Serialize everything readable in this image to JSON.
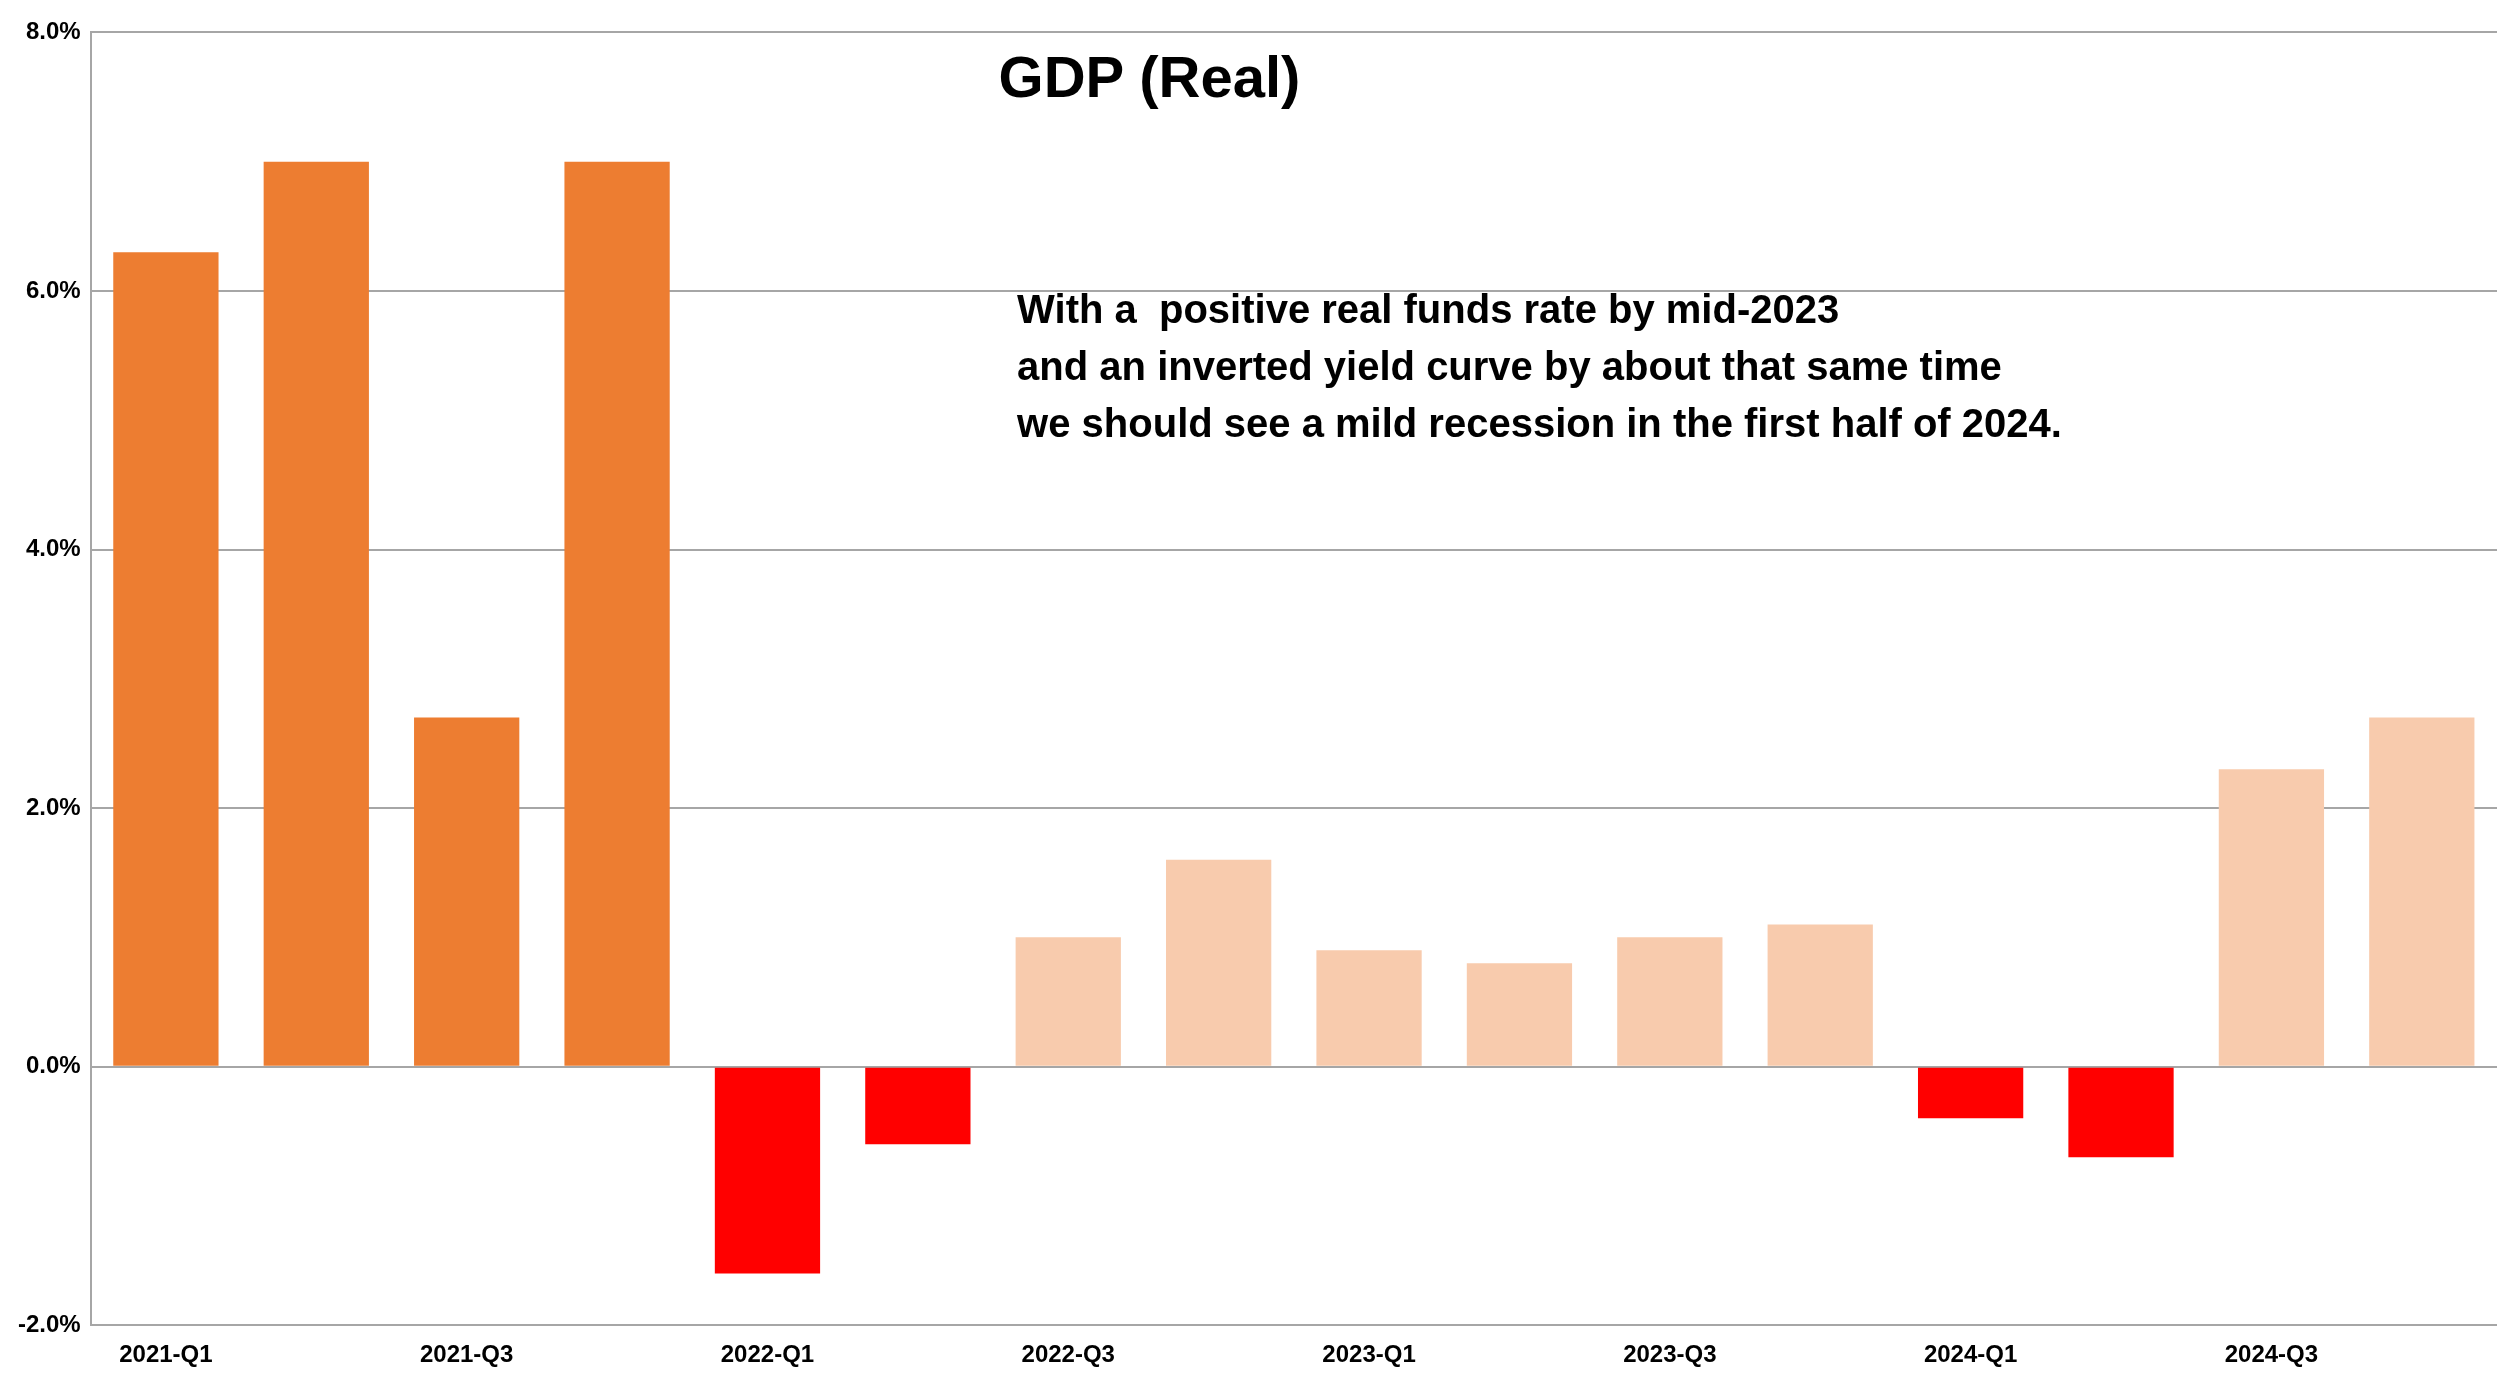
{
  "chart_data": {
    "type": "bar",
    "title": "GDP (Real)",
    "categories": [
      "2021-Q1",
      null,
      "2021-Q3",
      null,
      "2022-Q1",
      null,
      "2022-Q3",
      null,
      "2023-Q1",
      null,
      "2023-Q3",
      null,
      "2024-Q1",
      null,
      "2024-Q3",
      null
    ],
    "values": [
      6.3,
      7.0,
      2.7,
      7.0,
      -1.6,
      -0.6,
      1.0,
      1.6,
      0.9,
      0.8,
      1.0,
      1.1,
      -0.4,
      -0.7,
      2.3,
      2.7
    ],
    "colors": [
      "#ed7d31",
      "#ed7d31",
      "#ed7d31",
      "#ed7d31",
      "#ff0000",
      "#ff0000",
      "#f8cbad",
      "#f8cbad",
      "#f8cbad",
      "#f8cbad",
      "#f8cbad",
      "#f8cbad",
      "#ff0000",
      "#ff0000",
      "#f8cbad",
      "#f8cbad"
    ],
    "ylim": [
      -2,
      8
    ],
    "yticks": [
      {
        "value": -2,
        "label": "-2.0%"
      },
      {
        "value": 0,
        "label": "0.0%"
      },
      {
        "value": 2,
        "label": "2.0%"
      },
      {
        "value": 4,
        "label": "4.0%"
      },
      {
        "value": 6,
        "label": "6.0%"
      },
      {
        "value": 8,
        "label": "8.0%"
      }
    ],
    "grid": "y",
    "legend": false,
    "annotations": [
      "With a  positive real funds rate by mid-2023",
      "and an inverted yield curve by about that same time",
      "we should see a mild recession in the first half of 2024."
    ]
  }
}
